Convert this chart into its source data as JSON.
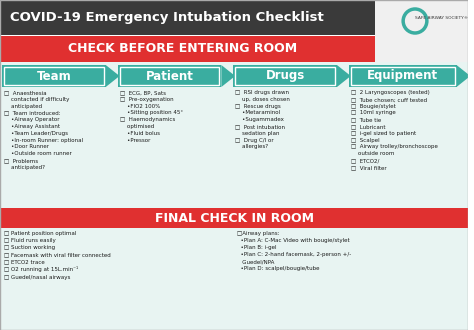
{
  "title": "COVID-19 Emergency Intubation Checklist",
  "section1_header": "CHECK BEFORE ENTERING ROOM",
  "section2_header": "FINAL CHECK IN ROOM",
  "header_bg": "#3a3a3a",
  "red_bg": "#e03030",
  "teal_arrow": "#3aada0",
  "light_bg": "#e8f4f2",
  "white": "#ffffff",
  "columns": [
    "Team",
    "Patient",
    "Drugs",
    "Equipment"
  ],
  "team_items": "□  Anaesthesia\n    contacted if difficulty\n    anticipated\n□  Team introduced:\n    •Airway Operator\n    •Airway Assistant\n    •Team Leader/Drugs\n    •In-room Runner: optional\n    •Door Runner\n    •Outside room runner\n□  Problems\n    anticipated?",
  "patient_items": "□  ECG, BP, Sats\n□  Pre-oxygenation\n    •FIO2 100%\n    •Sitting position 45°\n□  Haemodynamics\n    optimised\n    •Fluid bolus\n    •Pressor",
  "drugs_items": "□  RSI drugs drawn\n    up, doses chosen\n□  Rescue drugs\n    •Metaraminol\n    •Sugammadex\n□  Post intubation\n    sedation plan\n□  Drug C/I or\n    allergies?",
  "equipment_items": "□  2 Laryngoscopes (tested)\n□  Tube chosen; cuff tested\n□  Bougie/stylet\n□  10ml syringe\n□  Tube tie\n□  Lubricant\n□  i-gel sized to patient\n□  Scalpel\n□  Airway trolley/bronchoscope\n    outside room\n□  ETCO2/\n□  Viral filter",
  "final_left": "□ Patient position optimal\n□ Fluid runs easily\n□ Suction working\n□ Facemask with viral filter connected\n□ ETCO2 trace\n□ O2 running at 15L.min⁻¹\n□ Guedel/nasal airways",
  "final_right": "□Airway plans:\n  •Plan A: C-Mac Video with bougie/stylet\n  •Plan B: i-gel\n  •Plan C: 2-hand facemask, 2-person +/-\n   Guedel/NPA\n  •Plan D: scalpel/bougie/tube"
}
